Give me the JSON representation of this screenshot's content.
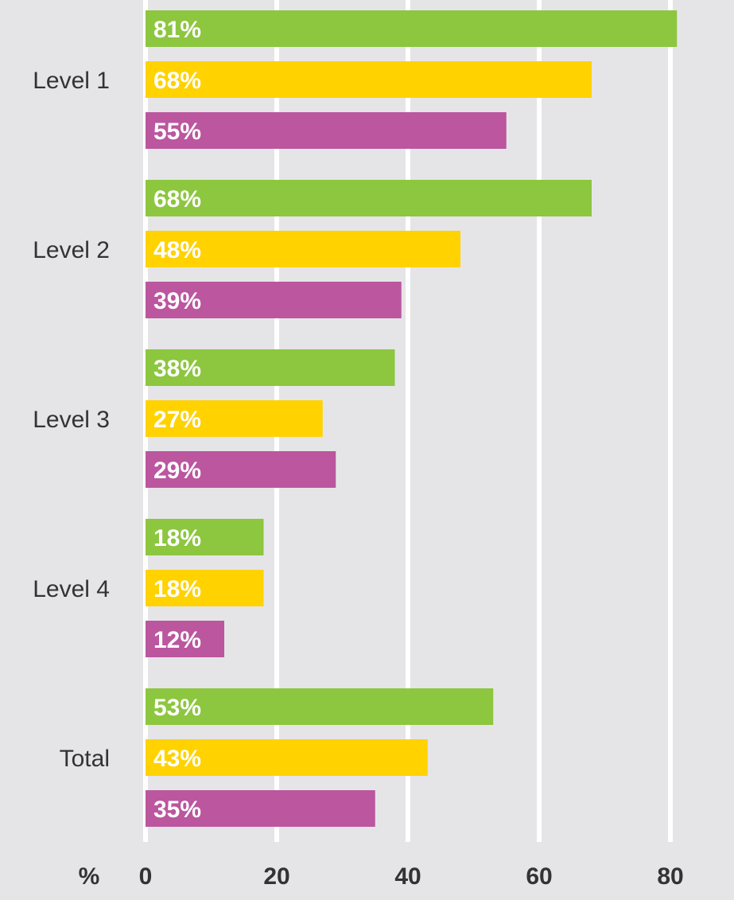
{
  "chart_data": {
    "type": "bar",
    "orientation": "horizontal",
    "categories": [
      "Level 1",
      "Level 2",
      "Level 3",
      "Level 4",
      "Total"
    ],
    "series": [
      {
        "color": "#8dc63f",
        "values": [
          81,
          68,
          38,
          18,
          53
        ]
      },
      {
        "color": "#ffd200",
        "values": [
          68,
          48,
          27,
          18,
          43
        ]
      },
      {
        "color": "#bb569f",
        "values": [
          55,
          39,
          29,
          12,
          35
        ]
      }
    ],
    "value_suffix": "%",
    "x_unit": "%",
    "xlim": [
      0,
      80
    ],
    "xticks": [
      0,
      20,
      40,
      60,
      80
    ],
    "grid": true,
    "title": "",
    "xlabel": "",
    "ylabel": ""
  }
}
